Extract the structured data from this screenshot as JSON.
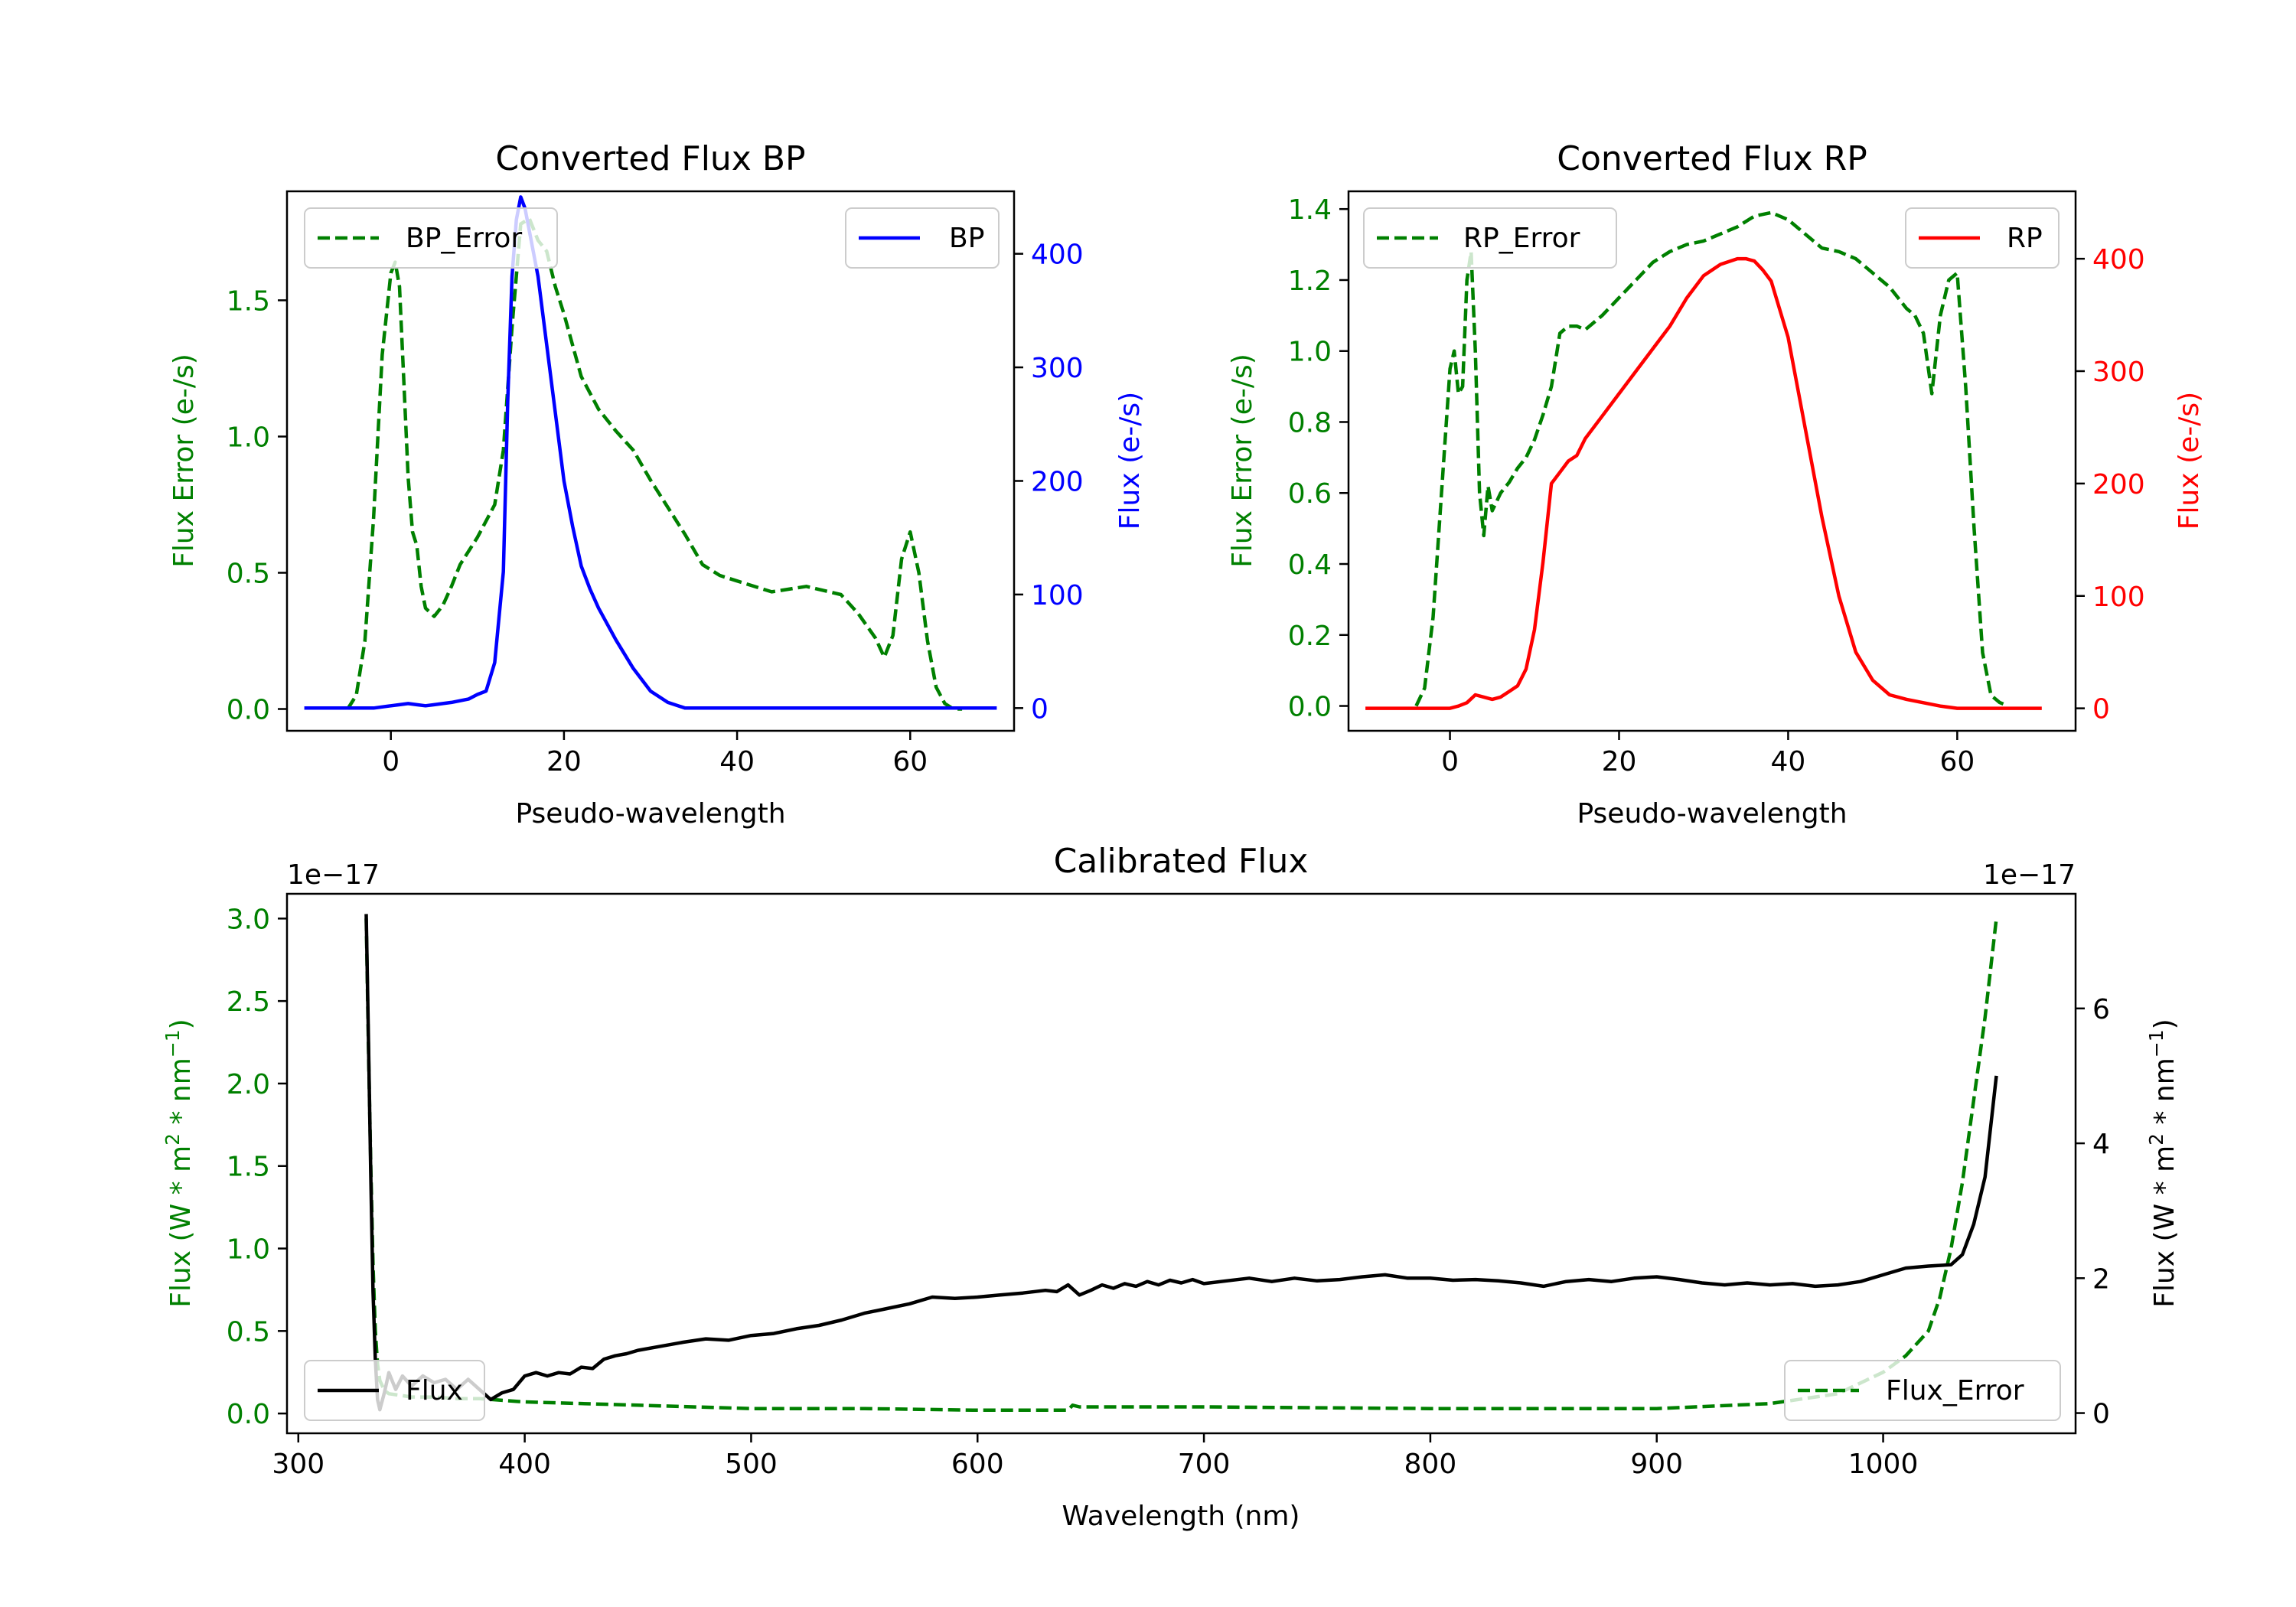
{
  "colors": {
    "bp": "#0000ff",
    "rp": "#ff0000",
    "error": "#008000",
    "flux": "#000000",
    "axis": "#000000"
  },
  "chart_data": [
    {
      "id": "bp",
      "type": "line",
      "title": "Converted Flux BP",
      "xlabel": "Pseudo-wavelength",
      "ylabel_left": "Flux Error (e-/s)",
      "ylabel_right": "Flux (e-/s)",
      "xlim": [
        -12,
        72
      ],
      "ylim_left": [
        -0.08,
        1.9
      ],
      "ylim_right": [
        -20,
        455
      ],
      "xticks": [
        0,
        20,
        40,
        60
      ],
      "yticks_left": [
        "0.0",
        "0.5",
        "1.0",
        "1.5"
      ],
      "yticks_right": [
        "0",
        "100",
        "200",
        "300",
        "400"
      ],
      "legend_left": "BP_Error",
      "legend_right": "BP",
      "series": [
        {
          "name": "BP_Error",
          "axis": "left",
          "style": "dashed",
          "color": "#008000",
          "x": [
            -5,
            -4,
            -3,
            -2,
            -1,
            0,
            0.5,
            1,
            1.5,
            2,
            2.5,
            3,
            3.5,
            4,
            5,
            6,
            7,
            8,
            10,
            12,
            13,
            14,
            15,
            16,
            17,
            18,
            19,
            20,
            22,
            24,
            26,
            28,
            30,
            32,
            34,
            36,
            38,
            40,
            44,
            48,
            52,
            54,
            56,
            57,
            58,
            59,
            60,
            61,
            62,
            63,
            64,
            65,
            66
          ],
          "y": [
            0,
            0.05,
            0.25,
            0.7,
            1.3,
            1.6,
            1.64,
            1.55,
            1.2,
            0.85,
            0.65,
            0.6,
            0.45,
            0.37,
            0.34,
            0.38,
            0.45,
            0.53,
            0.63,
            0.75,
            0.95,
            1.4,
            1.78,
            1.8,
            1.72,
            1.68,
            1.55,
            1.45,
            1.22,
            1.1,
            1.02,
            0.95,
            0.84,
            0.74,
            0.64,
            0.53,
            0.49,
            0.47,
            0.43,
            0.45,
            0.42,
            0.35,
            0.26,
            0.19,
            0.27,
            0.55,
            0.65,
            0.5,
            0.25,
            0.08,
            0.02,
            0,
            0
          ]
        },
        {
          "name": "BP",
          "axis": "right",
          "style": "solid",
          "color": "#0000ff",
          "x": [
            -10,
            -5,
            -2,
            0,
            1,
            2,
            3,
            4,
            5,
            7,
            9,
            10,
            11,
            12,
            13,
            13.5,
            14,
            14.5,
            15,
            15.5,
            16,
            17,
            18,
            19,
            20,
            21,
            22,
            23,
            24,
            26,
            28,
            30,
            32,
            34,
            35,
            36,
            38,
            40,
            44,
            48,
            52,
            56,
            60,
            65,
            70
          ],
          "y": [
            0,
            0,
            0,
            2,
            3,
            4,
            3,
            2,
            3,
            5,
            8,
            12,
            15,
            40,
            120,
            270,
            380,
            430,
            450,
            440,
            420,
            380,
            320,
            260,
            200,
            160,
            125,
            105,
            88,
            60,
            35,
            15,
            5,
            0,
            0,
            0,
            0,
            0,
            0,
            0,
            0,
            0,
            0,
            0,
            0
          ]
        }
      ]
    },
    {
      "id": "rp",
      "type": "line",
      "title": "Converted Flux RP",
      "xlabel": "Pseudo-wavelength",
      "ylabel_left": "Flux Error (e-/s)",
      "ylabel_right": "Flux (e-/s)",
      "xlim": [
        -12,
        74
      ],
      "ylim_left": [
        -0.07,
        1.45
      ],
      "ylim_right": [
        -20,
        460
      ],
      "xticks": [
        0,
        20,
        40,
        60
      ],
      "yticks_left": [
        "0.0",
        "0.2",
        "0.4",
        "0.6",
        "0.8",
        "1.0",
        "1.2",
        "1.4"
      ],
      "yticks_right": [
        "0",
        "100",
        "200",
        "300",
        "400"
      ],
      "legend_left": "RP_Error",
      "legend_right": "RP",
      "series": [
        {
          "name": "RP_Error",
          "axis": "left",
          "style": "dashed",
          "color": "#008000",
          "x": [
            -4,
            -3,
            -2,
            -1,
            0,
            0.5,
            1,
            1.5,
            2,
            2.5,
            3,
            3.5,
            4,
            4.5,
            5,
            6,
            7,
            8,
            9,
            10,
            11,
            12,
            13,
            14,
            15,
            16,
            17,
            18,
            20,
            22,
            24,
            26,
            28,
            30,
            32,
            34,
            36,
            38,
            40,
            42,
            44,
            46,
            48,
            50,
            52,
            54,
            55,
            56,
            57,
            58,
            59,
            60,
            61,
            62,
            63,
            64,
            65,
            66
          ],
          "y": [
            0,
            0.05,
            0.25,
            0.6,
            0.95,
            1.0,
            0.88,
            0.9,
            1.2,
            1.28,
            1.0,
            0.6,
            0.48,
            0.62,
            0.55,
            0.6,
            0.63,
            0.67,
            0.7,
            0.75,
            0.82,
            0.9,
            1.05,
            1.07,
            1.07,
            1.06,
            1.08,
            1.1,
            1.15,
            1.2,
            1.25,
            1.28,
            1.3,
            1.31,
            1.33,
            1.35,
            1.38,
            1.39,
            1.37,
            1.33,
            1.29,
            1.28,
            1.26,
            1.22,
            1.18,
            1.12,
            1.1,
            1.05,
            0.88,
            1.1,
            1.2,
            1.22,
            0.9,
            0.5,
            0.15,
            0.03,
            0.01,
            0
          ]
        },
        {
          "name": "RP",
          "axis": "right",
          "style": "solid",
          "color": "#ff0000",
          "x": [
            -10,
            -5,
            0,
            1,
            2,
            3,
            4,
            5,
            6,
            7,
            8,
            9,
            10,
            11,
            12,
            13,
            14,
            15,
            16,
            18,
            20,
            22,
            24,
            26,
            28,
            30,
            32,
            34,
            35,
            36,
            37,
            38,
            40,
            42,
            44,
            46,
            48,
            50,
            52,
            54,
            56,
            58,
            60,
            62,
            65,
            70
          ],
          "y": [
            0,
            0,
            0,
            2,
            5,
            12,
            10,
            8,
            10,
            15,
            20,
            35,
            70,
            130,
            200,
            210,
            220,
            225,
            240,
            260,
            280,
            300,
            320,
            340,
            365,
            385,
            395,
            400,
            400,
            398,
            390,
            380,
            330,
            250,
            170,
            100,
            50,
            25,
            12,
            8,
            5,
            2,
            0,
            0,
            0,
            0
          ]
        }
      ]
    },
    {
      "id": "calibrated",
      "type": "line",
      "title": "Calibrated Flux",
      "xlabel": "Wavelength (nm)",
      "ylabel_left": "Flux (W * m^2 * nm^-1)",
      "ylabel_right": "Flux (W * m^2 * nm^-1)",
      "offset_left": "1e−17",
      "offset_right": "1e−17",
      "xlim": [
        295,
        1085
      ],
      "ylim_left": [
        -0.12,
        3.15
      ],
      "ylim_right": [
        -0.3,
        7.7
      ],
      "xticks": [
        300,
        400,
        500,
        600,
        700,
        800,
        900,
        1000
      ],
      "yticks_left": [
        "0.0",
        "0.5",
        "1.0",
        "1.5",
        "2.0",
        "2.5",
        "3.0"
      ],
      "yticks_right": [
        "0",
        "2",
        "4",
        "6"
      ],
      "legend_left": "Flux",
      "legend_right": "Flux_Error",
      "series": [
        {
          "name": "Flux_Error",
          "axis": "left",
          "style": "dashed",
          "color": "#008000",
          "x": [
            330,
            331,
            332,
            333,
            334,
            335,
            336,
            338,
            340,
            345,
            350,
            360,
            370,
            380,
            390,
            400,
            450,
            500,
            550,
            600,
            640,
            642,
            645,
            700,
            800,
            900,
            950,
            980,
            1000,
            1010,
            1020,
            1025,
            1030,
            1035,
            1040,
            1045,
            1050
          ],
          "y": [
            3.0,
            2.2,
            1.5,
            0.9,
            0.5,
            0.3,
            0.2,
            0.14,
            0.12,
            0.11,
            0.1,
            0.1,
            0.09,
            0.09,
            0.08,
            0.07,
            0.05,
            0.03,
            0.03,
            0.02,
            0.02,
            0.05,
            0.04,
            0.04,
            0.03,
            0.03,
            0.06,
            0.12,
            0.25,
            0.35,
            0.5,
            0.7,
            1.0,
            1.4,
            1.9,
            2.4,
            3.0
          ]
        },
        {
          "name": "Flux",
          "axis": "right",
          "style": "solid",
          "color": "#000000",
          "x": [
            330,
            331,
            332,
            333,
            334,
            335,
            336,
            338,
            340,
            343,
            346,
            350,
            355,
            360,
            365,
            370,
            375,
            380,
            385,
            390,
            395,
            400,
            405,
            410,
            415,
            420,
            425,
            430,
            435,
            440,
            445,
            450,
            460,
            470,
            480,
            490,
            500,
            510,
            520,
            530,
            540,
            550,
            560,
            570,
            580,
            590,
            600,
            610,
            620,
            630,
            635,
            640,
            645,
            650,
            655,
            660,
            665,
            670,
            675,
            680,
            685,
            690,
            695,
            700,
            710,
            720,
            730,
            740,
            750,
            760,
            770,
            780,
            790,
            800,
            810,
            820,
            830,
            840,
            850,
            860,
            870,
            880,
            890,
            900,
            910,
            920,
            930,
            940,
            950,
            960,
            970,
            980,
            990,
            1000,
            1010,
            1020,
            1030,
            1035,
            1040,
            1045,
            1050
          ],
          "y": [
            7.4,
            5.5,
            3.5,
            1.8,
            0.8,
            0.2,
            0.05,
            0.3,
            0.6,
            0.35,
            0.55,
            0.4,
            0.55,
            0.45,
            0.5,
            0.35,
            0.5,
            0.35,
            0.2,
            0.3,
            0.35,
            0.55,
            0.6,
            0.55,
            0.6,
            0.58,
            0.68,
            0.66,
            0.8,
            0.85,
            0.88,
            0.93,
            0.99,
            1.05,
            1.1,
            1.08,
            1.15,
            1.18,
            1.25,
            1.3,
            1.38,
            1.48,
            1.55,
            1.62,
            1.72,
            1.7,
            1.72,
            1.75,
            1.78,
            1.82,
            1.8,
            1.9,
            1.75,
            1.82,
            1.9,
            1.85,
            1.92,
            1.88,
            1.95,
            1.9,
            1.97,
            1.93,
            1.98,
            1.92,
            1.96,
            2.0,
            1.95,
            2.0,
            1.96,
            1.98,
            2.02,
            2.05,
            2.0,
            2.0,
            1.97,
            1.98,
            1.96,
            1.93,
            1.88,
            1.95,
            1.98,
            1.95,
            2.0,
            2.02,
            1.98,
            1.93,
            1.9,
            1.93,
            1.9,
            1.92,
            1.88,
            1.9,
            1.95,
            2.05,
            2.15,
            2.18,
            2.2,
            2.35,
            2.8,
            3.5,
            5.0
          ]
        }
      ]
    }
  ]
}
